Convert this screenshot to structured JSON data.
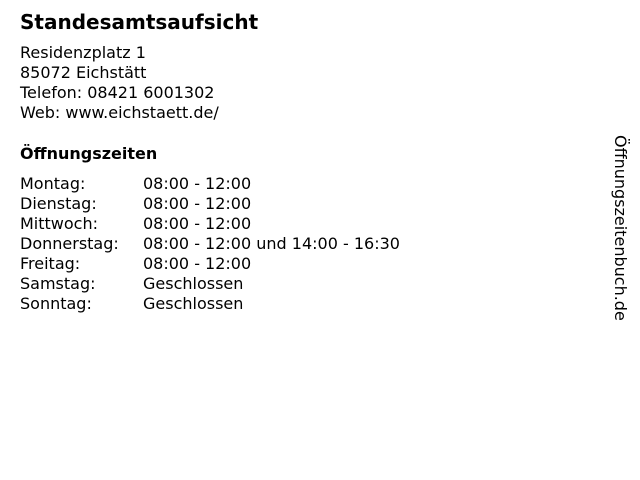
{
  "title": "Standesamtsaufsicht",
  "address": {
    "street": "Residenzplatz 1",
    "city": "85072 Eichstätt",
    "phone": "Telefon: 08421 6001302",
    "web": "Web: www.eichstaett.de/"
  },
  "hours_title": "Öffnungszeiten",
  "hours": [
    {
      "day": "Montag:",
      "time": "08:00 - 12:00"
    },
    {
      "day": "Dienstag:",
      "time": "08:00 - 12:00"
    },
    {
      "day": "Mittwoch:",
      "time": "08:00 - 12:00"
    },
    {
      "day": "Donnerstag:",
      "time": "08:00 - 12:00 und 14:00 - 16:30"
    },
    {
      "day": "Freitag:",
      "time": "08:00 - 12:00"
    },
    {
      "day": "Samstag:",
      "time": "Geschlossen"
    },
    {
      "day": "Sonntag:",
      "time": "Geschlossen"
    }
  ],
  "brand": "Öffnungszeitenbuch.de"
}
